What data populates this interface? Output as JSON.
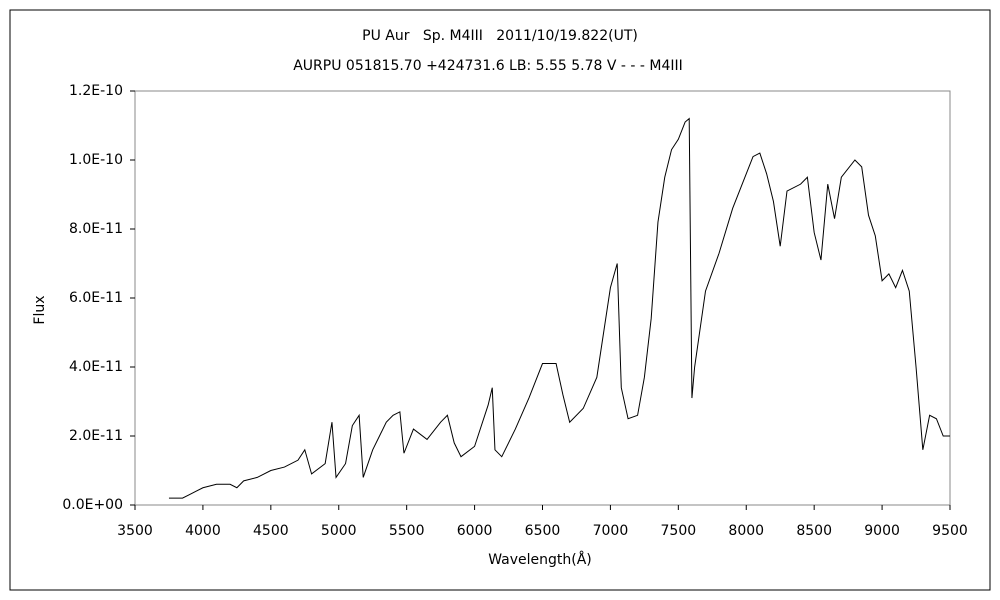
{
  "chart_data": {
    "type": "line",
    "title": "PU Aur   Sp. M4III   2011/10/19.822(UT)",
    "subtitle": "AURPU 051815.70 +424731.6 LB: 5.55 5.78 V - - - M4III",
    "x_label": "Wavelength(Å)",
    "y_label": "Flux",
    "x": [
      3750,
      3800,
      3850,
      3900,
      3950,
      4000,
      4100,
      4200,
      4250,
      4300,
      4400,
      4500,
      4600,
      4700,
      4750,
      4800,
      4900,
      4950,
      4980,
      5050,
      5100,
      5150,
      5180,
      5250,
      5300,
      5350,
      5400,
      5450,
      5480,
      5550,
      5650,
      5750,
      5800,
      5850,
      5900,
      6000,
      6100,
      6130,
      6150,
      6200,
      6300,
      6400,
      6500,
      6600,
      6650,
      6700,
      6800,
      6900,
      6950,
      7000,
      7050,
      7080,
      7130,
      7200,
      7250,
      7300,
      7350,
      7400,
      7450,
      7500,
      7550,
      7580,
      7600,
      7620,
      7700,
      7800,
      7900,
      8000,
      8050,
      8100,
      8150,
      8200,
      8250,
      8300,
      8400,
      8450,
      8500,
      8550,
      8600,
      8650,
      8700,
      8800,
      8850,
      8900,
      8950,
      9000,
      9050,
      9100,
      9150,
      9200,
      9250,
      9300,
      9350,
      9400,
      9450,
      9500
    ],
    "series": [
      {
        "name": "Flux",
        "color": "#000000",
        "values": [
          2e-12,
          2e-12,
          2e-12,
          3e-12,
          4e-12,
          5e-12,
          6e-12,
          6e-12,
          5e-12,
          7e-12,
          8e-12,
          1e-11,
          1.1e-11,
          1.3e-11,
          1.6e-11,
          9e-12,
          1.2e-11,
          2.4e-11,
          8e-12,
          1.2e-11,
          2.3e-11,
          2.6e-11,
          8e-12,
          1.6e-11,
          2e-11,
          2.4e-11,
          2.6e-11,
          2.7e-11,
          1.5e-11,
          2.2e-11,
          1.9e-11,
          2.4e-11,
          2.6e-11,
          1.8e-11,
          1.4e-11,
          1.7e-11,
          2.9e-11,
          3.4e-11,
          1.6e-11,
          1.4e-11,
          2.2e-11,
          3.1e-11,
          4.1e-11,
          4.1e-11,
          3.2e-11,
          2.4e-11,
          2.8e-11,
          3.7e-11,
          5e-11,
          6.3e-11,
          7e-11,
          3.4e-11,
          2.5e-11,
          2.6e-11,
          3.7e-11,
          5.4e-11,
          8.2e-11,
          9.5e-11,
          1.03e-10,
          1.06e-10,
          1.11e-10,
          1.12e-10,
          3.1e-11,
          4e-11,
          6.2e-11,
          7.3e-11,
          8.6e-11,
          9.6e-11,
          1.01e-10,
          1.02e-10,
          9.6e-11,
          8.8e-11,
          7.5e-11,
          9.1e-11,
          9.3e-11,
          9.5e-11,
          7.9e-11,
          7.1e-11,
          9.3e-11,
          8.3e-11,
          9.5e-11,
          1e-10,
          9.8e-11,
          8.4e-11,
          7.8e-11,
          6.5e-11,
          6.7e-11,
          6.3e-11,
          6.8e-11,
          6.2e-11,
          4e-11,
          1.6e-11,
          2.6e-11,
          2.5e-11,
          2e-11,
          2e-11
        ]
      }
    ],
    "xlim": [
      3500,
      9500
    ],
    "xticks": [
      3500,
      4000,
      4500,
      5000,
      5500,
      6000,
      6500,
      7000,
      7500,
      8000,
      8500,
      9000,
      9500
    ],
    "ylim": [
      0,
      1.2e-10
    ],
    "yticks": [
      {
        "value": 0,
        "label": "0.0E+00"
      },
      {
        "value": 2e-11,
        "label": "2.0E-11"
      },
      {
        "value": 4e-11,
        "label": "4.0E-11"
      },
      {
        "value": 6e-11,
        "label": "6.0E-11"
      },
      {
        "value": 8e-11,
        "label": "8.0E-11"
      },
      {
        "value": 1e-10,
        "label": "1.0E-10"
      },
      {
        "value": 1.2e-10,
        "label": "1.2E-10"
      }
    ],
    "grid": false
  }
}
